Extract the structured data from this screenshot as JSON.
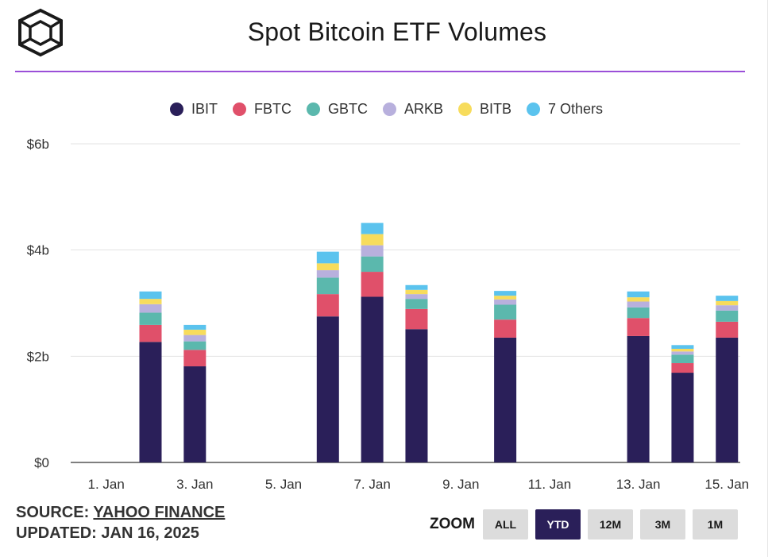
{
  "header": {
    "title": "Spot Bitcoin ETF Volumes"
  },
  "colors": {
    "accent": "#9b4fd8",
    "IBIT": "#2a1f59",
    "FBTC": "#e0506a",
    "GBTC": "#5bb8ad",
    "ARKB": "#b8b0dd",
    "BITB": "#f7dc5c",
    "Others": "#5bc3ee",
    "zoom_active": "#2a1f59",
    "zoom_inactive": "#dcdcdc"
  },
  "legend": [
    {
      "label": "IBIT",
      "color": "#2a1f59"
    },
    {
      "label": "FBTC",
      "color": "#e0506a"
    },
    {
      "label": "GBTC",
      "color": "#5bb8ad"
    },
    {
      "label": "ARKB",
      "color": "#b8b0dd"
    },
    {
      "label": "BITB",
      "color": "#f7dc5c"
    },
    {
      "label": "7 Others",
      "color": "#5bc3ee"
    }
  ],
  "chart_data": {
    "type": "bar",
    "stacked": true,
    "title": "Spot Bitcoin ETF Volumes",
    "xlabel": "",
    "ylabel": "",
    "ylim": [
      0,
      6
    ],
    "y_ticks": [
      0,
      2,
      4,
      6
    ],
    "y_tick_labels": [
      "$0",
      "$2b",
      "$4b",
      "$6b"
    ],
    "x_tick_labels": [
      "1. Jan",
      "3. Jan",
      "5. Jan",
      "7. Jan",
      "9. Jan",
      "11. Jan",
      "13. Jan",
      "15. Jan"
    ],
    "x_tick_days": [
      1,
      3,
      5,
      7,
      9,
      11,
      13,
      15
    ],
    "x_range_days": [
      0.2,
      15.3
    ],
    "categories": [
      "2. Jan",
      "3. Jan",
      "6. Jan",
      "7. Jan",
      "8. Jan",
      "10. Jan",
      "13. Jan",
      "14. Jan",
      "15. Jan"
    ],
    "category_days": [
      2,
      3,
      6,
      7,
      8,
      10,
      13,
      14,
      15
    ],
    "series": [
      {
        "name": "IBIT",
        "values": [
          2.27,
          1.81,
          2.75,
          3.12,
          2.51,
          2.35,
          2.38,
          1.69,
          2.35
        ]
      },
      {
        "name": "FBTC",
        "values": [
          0.32,
          0.31,
          0.42,
          0.47,
          0.38,
          0.34,
          0.34,
          0.18,
          0.3
        ]
      },
      {
        "name": "GBTC",
        "values": [
          0.23,
          0.16,
          0.31,
          0.29,
          0.19,
          0.28,
          0.2,
          0.16,
          0.21
        ]
      },
      {
        "name": "ARKB",
        "values": [
          0.16,
          0.12,
          0.14,
          0.21,
          0.09,
          0.1,
          0.11,
          0.06,
          0.1
        ]
      },
      {
        "name": "BITB",
        "values": [
          0.1,
          0.1,
          0.13,
          0.21,
          0.08,
          0.07,
          0.08,
          0.05,
          0.08
        ]
      },
      {
        "name": "7 Others",
        "values": [
          0.14,
          0.09,
          0.22,
          0.21,
          0.09,
          0.09,
          0.11,
          0.07,
          0.1
        ]
      }
    ]
  },
  "footer": {
    "source_prefix": "SOURCE: ",
    "source_link": "YAHOO FINANCE",
    "updated": "UPDATED: JAN 16, 2025"
  },
  "zoom": {
    "label": "ZOOM",
    "options": [
      "ALL",
      "YTD",
      "12M",
      "3M",
      "1M"
    ],
    "selected": "YTD"
  }
}
